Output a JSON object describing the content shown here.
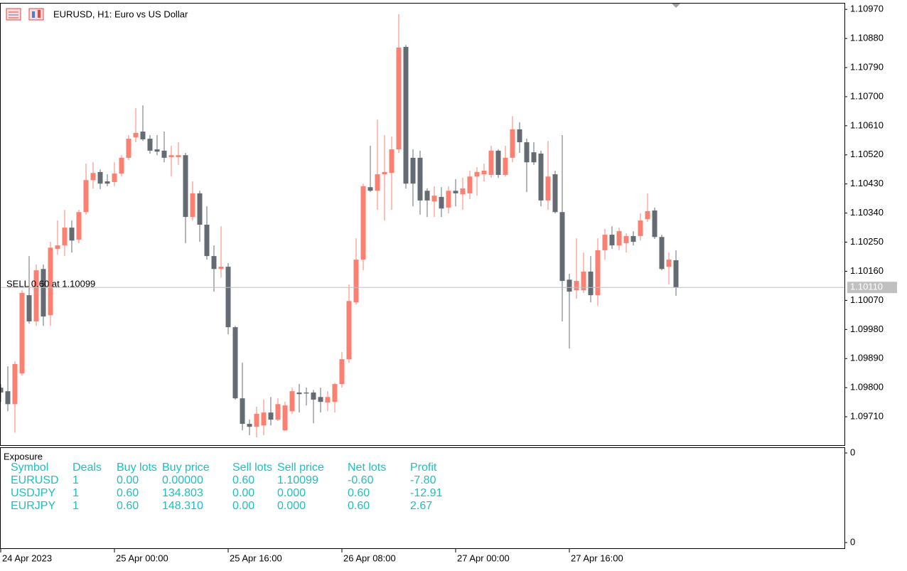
{
  "chart_data": {
    "type": "candlestick",
    "title": "EURUSD, H1:  Euro vs US Dollar",
    "up_color": "#fa8072",
    "down_color": "#646b73",
    "open": [
      1.098,
      1.09789,
      1.09749,
      1.09844,
      1.10086,
      1.10005,
      1.10167,
      1.10024,
      1.10229,
      1.1024,
      1.10295,
      1.10258,
      1.10343,
      1.10442,
      1.10467,
      1.10438,
      1.10436,
      1.10462,
      1.10511,
      1.10574,
      1.10592,
      1.1057,
      1.10537,
      1.10533,
      1.10513,
      1.10513,
      1.10519,
      1.10328,
      1.10401,
      1.10304,
      1.10207,
      1.10167,
      1.10174,
      1.09987,
      1.09767,
      1.09688,
      1.09679,
      1.09683,
      1.09723,
      1.09701,
      1.09668,
      1.09727,
      1.09785,
      1.09785,
      1.09785,
      1.09771,
      1.09754,
      1.09756,
      1.09811,
      1.09888,
      1.10064,
      1.10196,
      1.1042,
      1.10409,
      1.1046,
      1.10464,
      1.10537,
      1.10854,
      1.10511,
      1.10511,
      1.10409,
      1.10376,
      1.1039,
      1.10357,
      1.10409,
      1.10398,
      1.10401,
      1.10453,
      1.1046,
      1.10458,
      1.10533,
      1.10458,
      1.10511,
      1.10599,
      1.10559,
      1.10528,
      1.10524,
      1.10379,
      1.1046,
      1.10343,
      1.10134,
      1.10101,
      1.10101,
      1.10159,
      1.10086,
      1.10225,
      1.10273,
      1.1024,
      1.10247,
      1.10269,
      1.10269,
      1.10321,
      1.10348,
      1.10266,
      1.10174,
      1.10194
    ],
    "high": [
      1.09811,
      1.09866,
      1.09881,
      1.10101,
      1.10207,
      1.10181,
      1.10181,
      1.10251,
      1.10317,
      1.1035,
      1.10317,
      1.1035,
      1.10493,
      1.10497,
      1.10475,
      1.1046,
      1.10497,
      1.10519,
      1.10581,
      1.10665,
      1.10673,
      1.10581,
      1.10581,
      1.10592,
      1.10548,
      1.10559,
      1.10526,
      1.10438,
      1.10409,
      1.10361,
      1.1024,
      1.10299,
      1.10185,
      1.09991,
      1.09877,
      1.09701,
      1.09741,
      1.09763,
      1.09771,
      1.09767,
      1.09756,
      1.098,
      1.09811,
      1.098,
      1.09793,
      1.098,
      1.09789,
      1.09815,
      1.0991,
      1.10119,
      1.10262,
      1.10431,
      1.10548,
      1.10629,
      1.10581,
      1.10577,
      1.10955,
      1.1086,
      1.10537,
      1.10533,
      1.10416,
      1.10423,
      1.1042,
      1.10423,
      1.10445,
      1.10449,
      1.10471,
      1.10482,
      1.10493,
      1.10548,
      1.10537,
      1.10548,
      1.1064,
      1.10621,
      1.1057,
      1.10559,
      1.10533,
      1.10563,
      1.10471,
      1.10581,
      1.10152,
      1.10262,
      1.10218,
      1.10207,
      1.10262,
      1.10291,
      1.10299,
      1.10295,
      1.10277,
      1.10284,
      1.10339,
      1.10401,
      1.10357,
      1.10273,
      1.10218,
      1.10225
    ],
    "low": [
      1.09756,
      1.09727,
      1.09661,
      1.09837,
      1.09998,
      1.09991,
      1.09991,
      1.09991,
      1.10211,
      1.10207,
      1.10218,
      1.10247,
      1.10335,
      1.10416,
      1.10414,
      1.10423,
      1.10423,
      1.10453,
      1.10504,
      1.10559,
      1.10563,
      1.10524,
      1.10519,
      1.10497,
      1.10453,
      1.10489,
      1.10247,
      1.10317,
      1.10251,
      1.10196,
      1.10097,
      1.10141,
      1.09965,
      1.09763,
      1.09668,
      1.09653,
      1.09646,
      1.09653,
      1.09683,
      1.09697,
      1.09666,
      1.09719,
      1.09723,
      1.09745,
      1.0969,
      1.09723,
      1.09727,
      1.09723,
      1.098,
      1.09877,
      1.10057,
      1.10163,
      1.10405,
      1.1035,
      1.10317,
      1.1035,
      1.10526,
      1.10416,
      1.10361,
      1.10335,
      1.10328,
      1.10328,
      1.10328,
      1.10339,
      1.10361,
      1.1035,
      1.10383,
      1.10394,
      1.10438,
      1.10449,
      1.10449,
      1.10453,
      1.10497,
      1.10526,
      1.10405,
      1.10489,
      1.10361,
      1.1035,
      1.10339,
      1.10005,
      1.09921,
      1.10075,
      1.10093,
      1.10064,
      1.10053,
      1.10196,
      1.10229,
      1.10225,
      1.10218,
      1.1024,
      1.10255,
      1.10313,
      1.1026,
      1.10163,
      1.10119,
      1.10084
    ],
    "close": [
      1.09785,
      1.09749,
      1.09873,
      1.10093,
      1.10005,
      1.10163,
      1.1002,
      1.10233,
      1.1024,
      1.10295,
      1.10255,
      1.10343,
      1.10442,
      1.10464,
      1.10431,
      1.10431,
      1.10462,
      1.10511,
      1.1057,
      1.10588,
      1.10568,
      1.10533,
      1.1053,
      1.10511,
      1.10519,
      1.10519,
      1.10328,
      1.10401,
      1.10304,
      1.10207,
      1.10167,
      1.10174,
      1.09987,
      1.09767,
      1.09688,
      1.09679,
      1.09719,
      1.09723,
      1.09701,
      1.09749,
      1.09745,
      1.09789,
      1.0978,
      1.09782,
      1.09763,
      1.09756,
      1.09771,
      1.09811,
      1.09888,
      1.10068,
      1.10196,
      1.10423,
      1.10409,
      1.1046,
      1.10467,
      1.10537,
      1.10852,
      1.10431,
      1.10431,
      1.10379,
      1.10379,
      1.10394,
      1.10354,
      1.10409,
      1.10401,
      1.10416,
      1.10453,
      1.10467,
      1.10471,
      1.10533,
      1.10458,
      1.10511,
      1.10599,
      1.10559,
      1.10497,
      1.10497,
      1.10379,
      1.10453,
      1.10343,
      1.1013,
      1.10097,
      1.1013,
      1.10159,
      1.10086,
      1.10225,
      1.10273,
      1.1024,
      1.10284,
      1.10269,
      1.10251,
      1.10317,
      1.10346,
      1.10266,
      1.10167,
      1.10196,
      1.1011
    ],
    "ylim": [
      1.0962,
      1.10999
    ],
    "yticks": [
      {
        "value": 1.1097,
        "label": "1.10970"
      },
      {
        "value": 1.1088,
        "label": "1.10880"
      },
      {
        "value": 1.1079,
        "label": "1.10790"
      },
      {
        "value": 1.107,
        "label": "1.10700"
      },
      {
        "value": 1.1061,
        "label": "1.10610"
      },
      {
        "value": 1.1052,
        "label": "1.10520"
      },
      {
        "value": 1.1043,
        "label": "1.10430"
      },
      {
        "value": 1.1034,
        "label": "1.10340"
      },
      {
        "value": 1.1025,
        "label": "1.10250"
      },
      {
        "value": 1.1016,
        "label": "1.10160"
      },
      {
        "value": 1.1007,
        "label": "1.10070"
      },
      {
        "value": 1.0998,
        "label": "1.09980"
      },
      {
        "value": 1.0989,
        "label": "1.09890"
      },
      {
        "value": 1.098,
        "label": "1.09800"
      },
      {
        "value": 1.0971,
        "label": "1.09710"
      }
    ],
    "xticks": [
      {
        "value": 0,
        "label": "24 Apr 2023"
      },
      {
        "value": 16,
        "label": "25 Apr 00:00"
      },
      {
        "value": 32,
        "label": "25 Apr 16:00"
      },
      {
        "value": 48,
        "label": "26 Apr 08:00"
      },
      {
        "value": 64,
        "label": "27 Apr 00:00"
      },
      {
        "value": 80,
        "label": "27 Apr 16:00"
      }
    ],
    "bid": {
      "value": 1.1011,
      "label": "1.10110"
    },
    "annotation": "SELL 0.60 at 1.10099"
  },
  "exposure_panel": {
    "title": "Exposure",
    "axis_labels": [
      "0",
      "0"
    ],
    "columns": [
      "Symbol",
      "Deals",
      "Buy lots",
      "Buy price",
      "Sell lots",
      "Sell price",
      "Net lots",
      "Profit"
    ],
    "rows": [
      [
        "EURUSD",
        "1",
        "0.00",
        "0.00000",
        "0.60",
        "1.10099",
        "-0.60",
        "-7.80"
      ],
      [
        "USDJPY",
        "1",
        "0.60",
        "134.803",
        "0.00",
        "0.000",
        "0.60",
        "-12.91"
      ],
      [
        "EURJPY",
        "1",
        "0.60",
        "148.310",
        "0.00",
        "0.000",
        "0.60",
        "2.67"
      ]
    ]
  }
}
